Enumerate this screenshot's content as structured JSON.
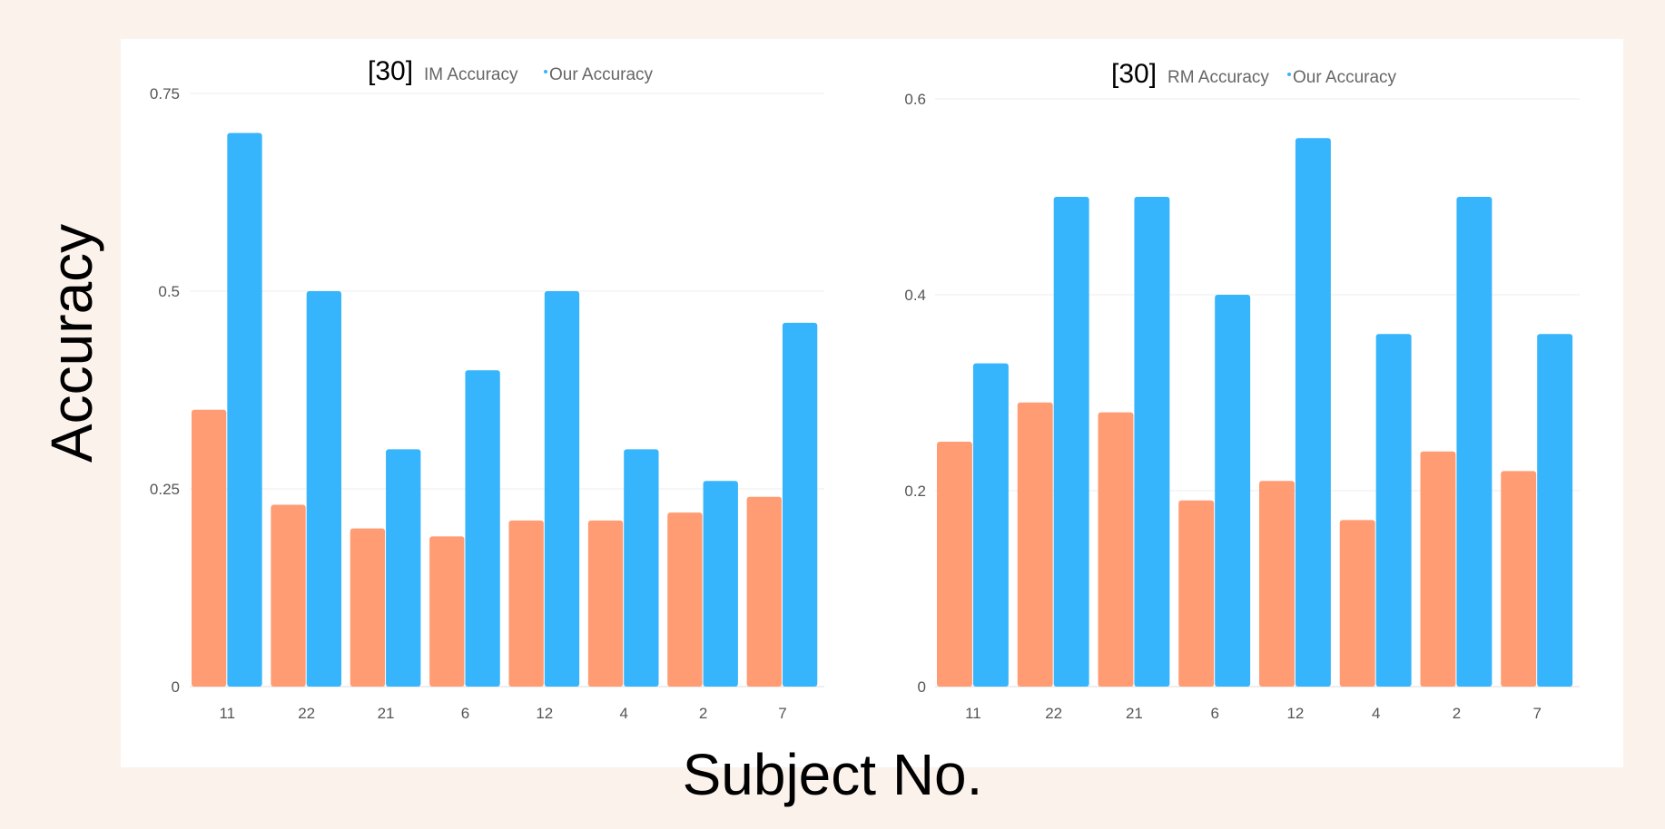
{
  "y_axis_label": "Accuracy",
  "x_axis_label": "Subject No.",
  "colors": {
    "orange": "#ff9c73",
    "blue": "#36b4fc"
  },
  "chart_data": [
    {
      "type": "bar",
      "legend": {
        "ref": "[30]",
        "items": [
          "IM  Accuracy",
          "Our Accuracy"
        ]
      },
      "categories": [
        "11",
        "22",
        "21",
        "6",
        "12",
        "4",
        "2",
        "7"
      ],
      "series": [
        {
          "name": "[30] IM Accuracy",
          "values": [
            0.35,
            0.23,
            0.2,
            0.19,
            0.21,
            0.21,
            0.22,
            0.24
          ]
        },
        {
          "name": "Our Accuracy",
          "values": [
            0.7,
            0.5,
            0.3,
            0.4,
            0.5,
            0.3,
            0.26,
            0.46
          ]
        }
      ],
      "yticks": [
        "0",
        "0.25",
        "0.5",
        "0.75"
      ],
      "ylim": [
        0,
        0.75
      ]
    },
    {
      "type": "bar",
      "legend": {
        "ref": "[30]",
        "items": [
          "RM  Accuracy",
          "Our Accuracy"
        ]
      },
      "categories": [
        "11",
        "22",
        "21",
        "6",
        "12",
        "4",
        "2",
        "7"
      ],
      "series": [
        {
          "name": "[30] RM Accuracy",
          "values": [
            0.25,
            0.29,
            0.28,
            0.19,
            0.21,
            0.17,
            0.24,
            0.22
          ]
        },
        {
          "name": "Our Accuracy",
          "values": [
            0.33,
            0.5,
            0.5,
            0.4,
            0.56,
            0.36,
            0.5,
            0.36
          ]
        }
      ],
      "yticks": [
        "0",
        "0.2",
        "0.4",
        "0.6"
      ],
      "ylim": [
        0,
        0.6
      ]
    }
  ]
}
